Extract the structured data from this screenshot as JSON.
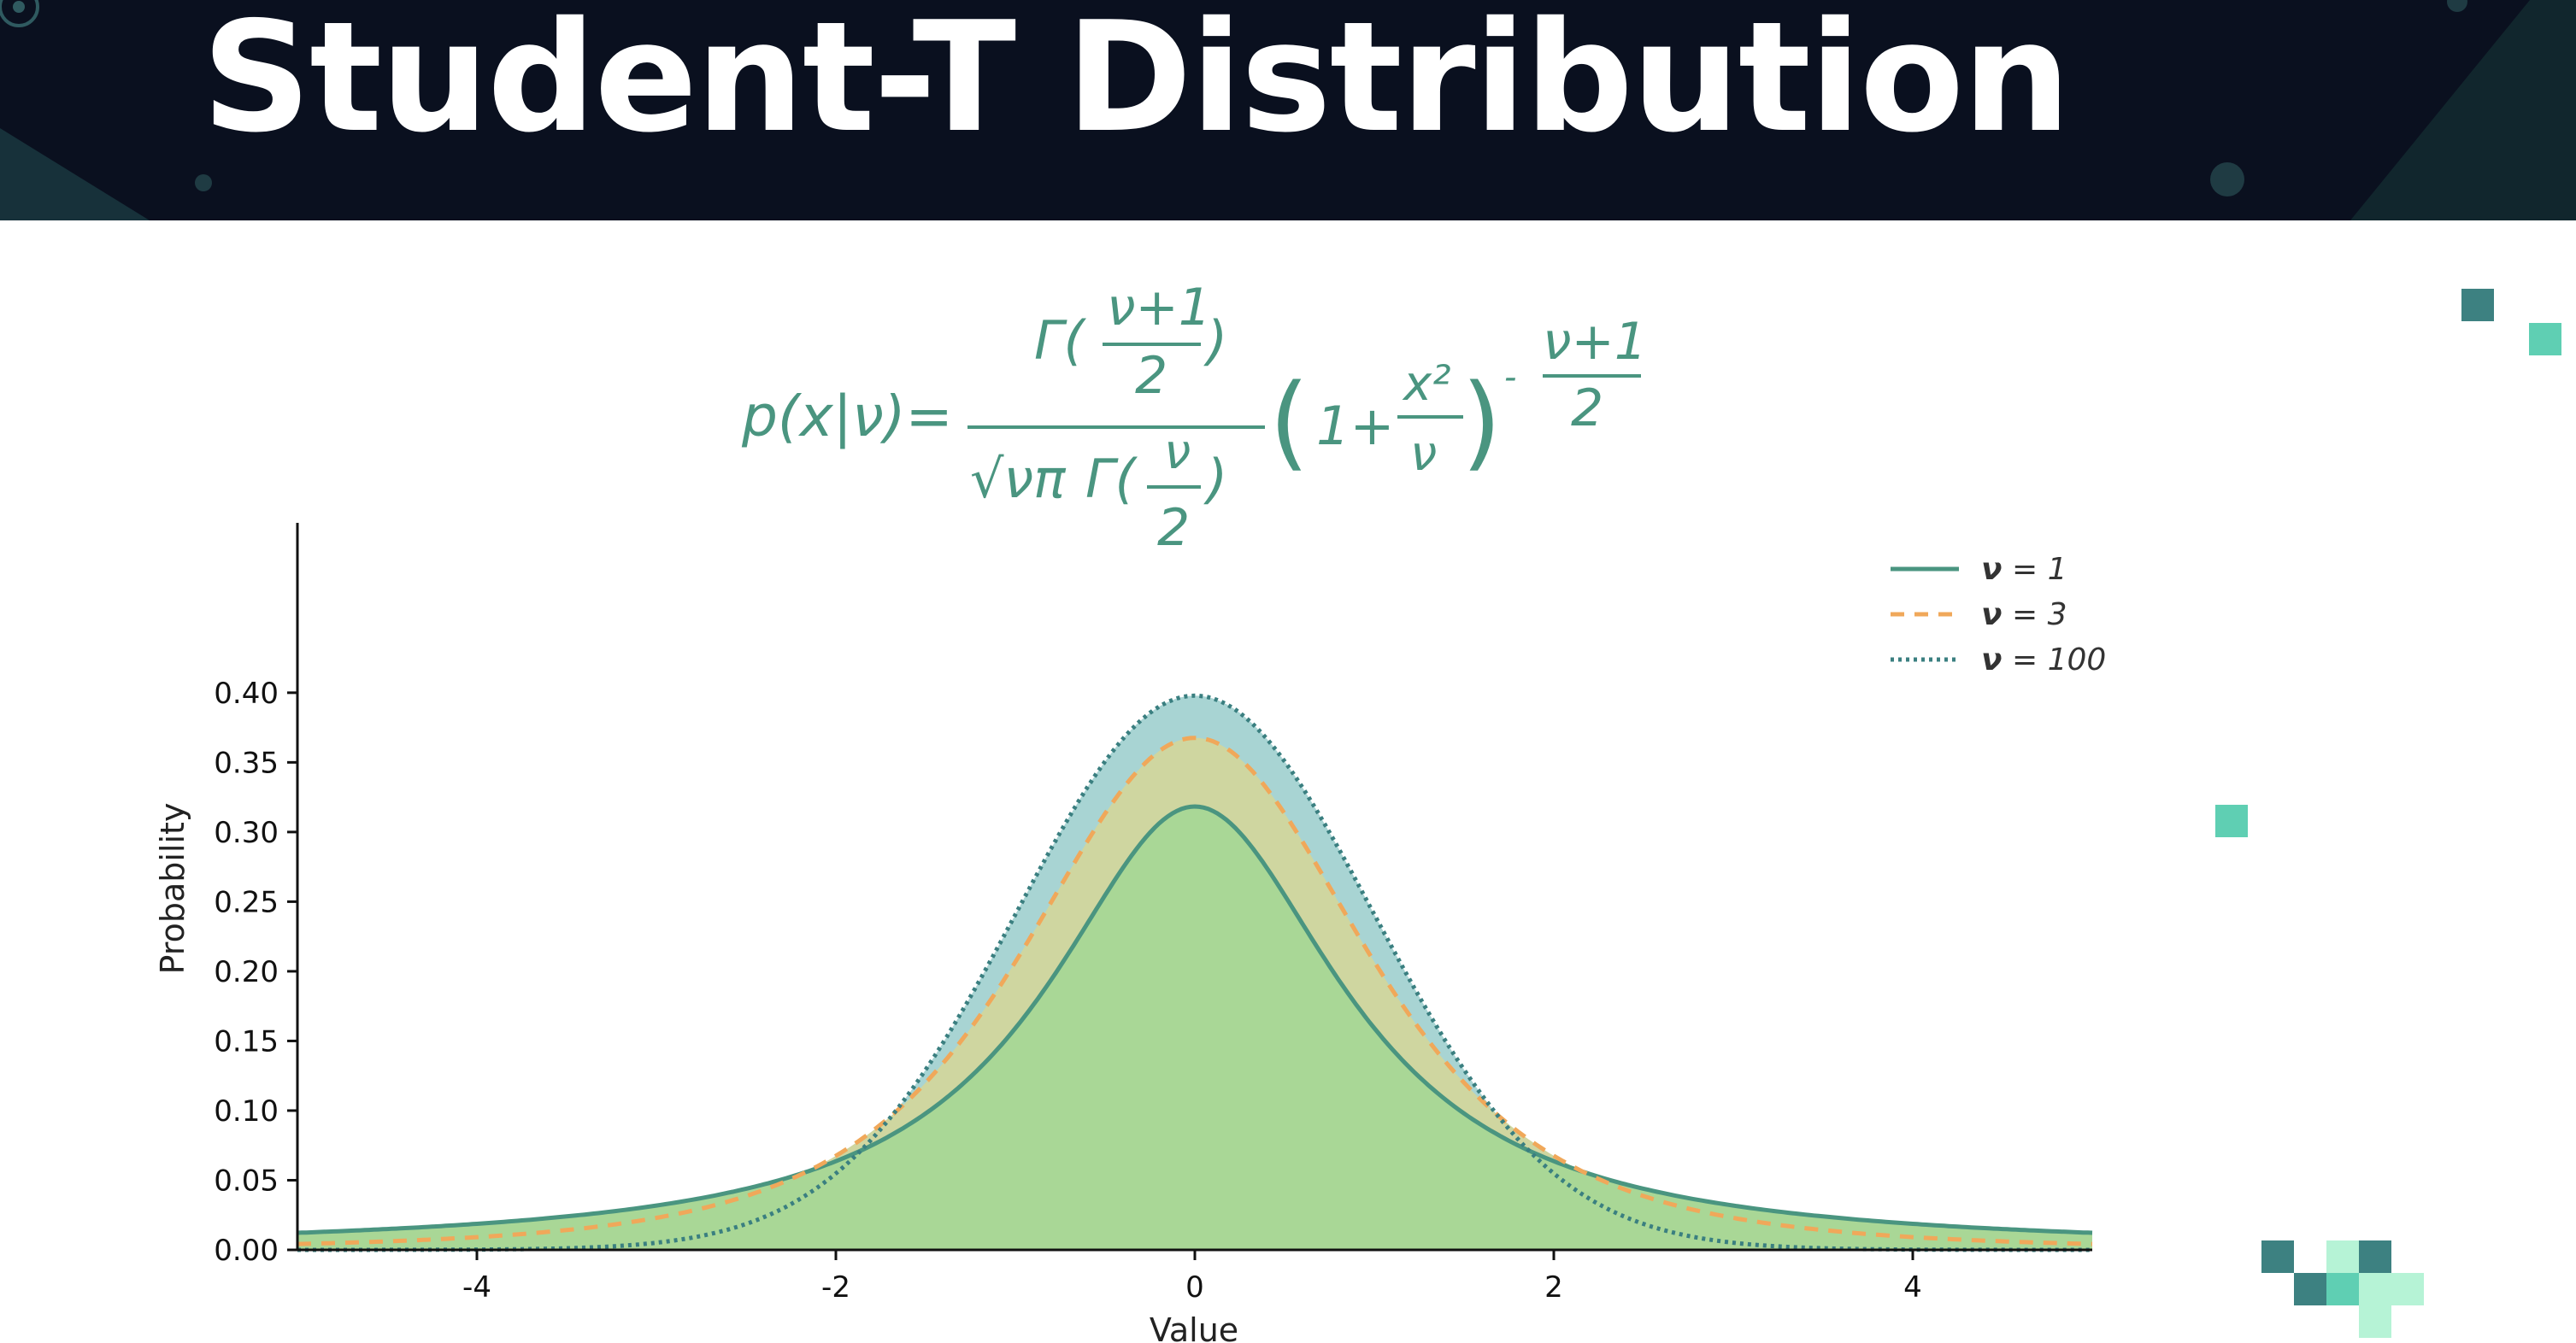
{
  "banner": {
    "title": "Student-T Distribution"
  },
  "formula": {
    "lhs": "p(x|ν)=",
    "gamma_num": "Γ(",
    "nu_plus_1": "ν+1",
    "two": "2",
    "close_paren": ")",
    "sqrt_nu_pi": "√νπ",
    "gamma_den": "Γ(",
    "nu": "ν",
    "one_plus": "1+",
    "x_squared": "x²",
    "minus": "-",
    "exp_num": "ν+1",
    "exp_den": "2"
  },
  "colors": {
    "banner_bg": "#0a101f",
    "formula": "#4a9580",
    "nu1": "#4a9580",
    "nu3": "#f0a85a",
    "nu100": "#3a7f80",
    "fill_nu1": "#a9d796",
    "fill_nu3": "#cfd6a0",
    "fill_nu100": "#a8d4d3",
    "deco_dark": "#3d8181",
    "deco_mid": "#5fcfb3",
    "deco_light": "#b6f3d6"
  },
  "chart_data": {
    "type": "line",
    "xlabel": "Value",
    "ylabel": "Probability",
    "xlim": [
      -5,
      5
    ],
    "ylim": [
      0,
      0.45
    ],
    "xticks": [
      -4,
      -2,
      0,
      2,
      4
    ],
    "xtick_labels": [
      "-4",
      "-2",
      "0",
      "2",
      "4"
    ],
    "yticks": [
      0,
      0.05,
      0.1,
      0.15,
      0.2,
      0.25,
      0.3,
      0.35,
      0.4
    ],
    "ytick_labels": [
      "0.00",
      "0.05",
      "0.10",
      "0.15",
      "0.20",
      "0.25",
      "0.30",
      "0.35",
      "0.40"
    ],
    "legend_position": "top-right",
    "x": [
      -5,
      -4.5,
      -4,
      -3.5,
      -3,
      -2.5,
      -2,
      -1.5,
      -1,
      -0.5,
      0,
      0.5,
      1,
      1.5,
      2,
      2.5,
      3,
      3.5,
      4,
      4.5,
      5
    ],
    "series": [
      {
        "name": "ν = 1",
        "nu": 1,
        "style": "solid",
        "values": [
          0.0122,
          0.0149,
          0.0187,
          0.0241,
          0.0318,
          0.0439,
          0.0637,
          0.0979,
          0.1592,
          0.2546,
          0.3183,
          0.2546,
          0.1592,
          0.0979,
          0.0637,
          0.0439,
          0.0318,
          0.0241,
          0.0187,
          0.0149,
          0.0122
        ]
      },
      {
        "name": "ν = 3",
        "nu": 3,
        "style": "dashed",
        "values": [
          0.0042,
          0.006,
          0.0092,
          0.0143,
          0.023,
          0.0382,
          0.0675,
          0.1274,
          0.2067,
          0.3116,
          0.3676,
          0.3116,
          0.2067,
          0.1274,
          0.0675,
          0.0382,
          0.023,
          0.0143,
          0.0092,
          0.006,
          0.0042
        ]
      },
      {
        "name": "ν = 100",
        "nu": 100,
        "style": "dotted",
        "values": [
          0.0,
          0.0,
          0.0002,
          0.0011,
          0.0051,
          0.0183,
          0.0549,
          0.13,
          0.2412,
          0.3516,
          0.3979,
          0.3516,
          0.2412,
          0.13,
          0.0549,
          0.0183,
          0.0051,
          0.0011,
          0.0002,
          0.0,
          0.0
        ]
      }
    ],
    "legend": [
      {
        "symbol": "ν",
        "text": "= 1"
      },
      {
        "symbol": "ν",
        "text": "= 3"
      },
      {
        "symbol": "ν",
        "text": "= 100"
      }
    ]
  }
}
